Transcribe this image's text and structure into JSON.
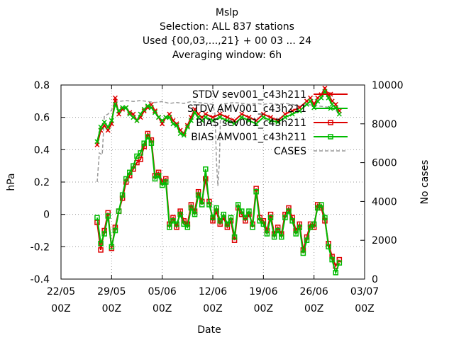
{
  "chart_data": {
    "type": "line",
    "title_lines": [
      "Mslp",
      "Selection: ALL    837 stations",
      "Used {00,03,...,21} + 00 03 ... 24",
      "Averaging window:  6h"
    ],
    "xlabel": "Date",
    "ylabel": "hPa",
    "y2label": "No cases",
    "ylim": [
      -0.4,
      0.8
    ],
    "y2lim": [
      0,
      10000
    ],
    "yticks": [
      "-0.4",
      "-0.2",
      "0",
      "0.2",
      "0.4",
      "0.6",
      "0.8"
    ],
    "y2ticks": [
      "0",
      "2000",
      "4000",
      "6000",
      "8000",
      "10000"
    ],
    "xlim": [
      0,
      42
    ],
    "xticks": [
      {
        "line1": "22/05",
        "line2": "00Z"
      },
      {
        "line1": "29/05",
        "line2": "00Z"
      },
      {
        "line1": "05/06",
        "line2": "00Z"
      },
      {
        "line1": "12/06",
        "line2": "00Z"
      },
      {
        "line1": "19/06",
        "line2": "00Z"
      },
      {
        "line1": "26/06",
        "line2": "00Z"
      },
      {
        "line1": "03/07",
        "line2": "00Z"
      }
    ],
    "grid": true,
    "legend_position": "top-right",
    "series": [
      {
        "name": "STDV sev001_c43h211",
        "marker": "x",
        "color": "#dd0000",
        "axis": "y",
        "values": [
          [
            5.0,
            0.43
          ],
          [
            5.5,
            0.52
          ],
          [
            6.0,
            0.55
          ],
          [
            6.5,
            0.52
          ],
          [
            7.0,
            0.56
          ],
          [
            7.5,
            0.72
          ],
          [
            8.0,
            0.62
          ],
          [
            8.5,
            0.65
          ],
          [
            9.0,
            0.66
          ],
          [
            9.5,
            0.63
          ],
          [
            10.0,
            0.62
          ],
          [
            10.5,
            0.58
          ],
          [
            11.0,
            0.6
          ],
          [
            11.5,
            0.64
          ],
          [
            12.0,
            0.66
          ],
          [
            12.5,
            0.68
          ],
          [
            13.0,
            0.64
          ],
          [
            13.5,
            0.6
          ],
          [
            14.0,
            0.56
          ],
          [
            14.5,
            0.6
          ],
          [
            15.0,
            0.62
          ],
          [
            15.5,
            0.58
          ],
          [
            16.0,
            0.56
          ],
          [
            16.5,
            0.52
          ],
          [
            17.0,
            0.5
          ],
          [
            17.5,
            0.55
          ],
          [
            18.0,
            0.6
          ],
          [
            18.5,
            0.65
          ],
          [
            19.0,
            0.62
          ],
          [
            19.5,
            0.6
          ],
          [
            20.0,
            0.62
          ],
          [
            21.0,
            0.6
          ],
          [
            22.0,
            0.62
          ],
          [
            23.0,
            0.6
          ],
          [
            24.0,
            0.58
          ],
          [
            25.0,
            0.62
          ],
          [
            26.0,
            0.6
          ],
          [
            27.0,
            0.58
          ],
          [
            28.0,
            0.62
          ],
          [
            29.0,
            0.6
          ],
          [
            30.0,
            0.58
          ],
          [
            31.0,
            0.62
          ],
          [
            32.0,
            0.64
          ],
          [
            33.0,
            0.66
          ],
          [
            34.0,
            0.7
          ],
          [
            34.5,
            0.72
          ],
          [
            35.0,
            0.68
          ],
          [
            35.5,
            0.72
          ],
          [
            36.0,
            0.74
          ],
          [
            36.5,
            0.78
          ],
          [
            37.0,
            0.74
          ],
          [
            37.5,
            0.7
          ],
          [
            38.0,
            0.68
          ],
          [
            38.5,
            0.64
          ]
        ]
      },
      {
        "name": "STDV AMV001_c43h211",
        "marker": "x",
        "color": "#00bb00",
        "axis": "y",
        "values": [
          [
            5.0,
            0.45
          ],
          [
            5.5,
            0.54
          ],
          [
            6.0,
            0.57
          ],
          [
            6.5,
            0.54
          ],
          [
            7.0,
            0.58
          ],
          [
            7.5,
            0.68
          ],
          [
            8.0,
            0.64
          ],
          [
            8.5,
            0.66
          ],
          [
            9.0,
            0.66
          ],
          [
            9.5,
            0.62
          ],
          [
            10.0,
            0.6
          ],
          [
            10.5,
            0.58
          ],
          [
            11.0,
            0.62
          ],
          [
            11.5,
            0.65
          ],
          [
            12.0,
            0.67
          ],
          [
            12.5,
            0.66
          ],
          [
            13.0,
            0.63
          ],
          [
            13.5,
            0.6
          ],
          [
            14.0,
            0.58
          ],
          [
            14.5,
            0.6
          ],
          [
            15.0,
            0.6
          ],
          [
            15.5,
            0.56
          ],
          [
            16.0,
            0.55
          ],
          [
            16.5,
            0.5
          ],
          [
            17.0,
            0.49
          ],
          [
            17.5,
            0.54
          ],
          [
            18.0,
            0.58
          ],
          [
            18.5,
            0.63
          ],
          [
            19.0,
            0.6
          ],
          [
            19.5,
            0.58
          ],
          [
            20.0,
            0.6
          ],
          [
            21.0,
            0.58
          ],
          [
            22.0,
            0.6
          ],
          [
            23.0,
            0.58
          ],
          [
            24.0,
            0.56
          ],
          [
            25.0,
            0.6
          ],
          [
            26.0,
            0.58
          ],
          [
            27.0,
            0.56
          ],
          [
            28.0,
            0.6
          ],
          [
            29.0,
            0.58
          ],
          [
            30.0,
            0.57
          ],
          [
            31.0,
            0.6
          ],
          [
            32.0,
            0.62
          ],
          [
            33.0,
            0.64
          ],
          [
            34.0,
            0.68
          ],
          [
            34.5,
            0.7
          ],
          [
            35.0,
            0.66
          ],
          [
            35.5,
            0.7
          ],
          [
            36.0,
            0.72
          ],
          [
            36.5,
            0.76
          ],
          [
            37.0,
            0.72
          ],
          [
            37.5,
            0.68
          ],
          [
            38.0,
            0.66
          ],
          [
            38.5,
            0.62
          ]
        ]
      },
      {
        "name": "BIAS sev001_c43h211",
        "marker": "square",
        "color": "#dd0000",
        "axis": "y",
        "values": [
          [
            5.0,
            -0.05
          ],
          [
            5.5,
            -0.22
          ],
          [
            6.0,
            -0.1
          ],
          [
            6.5,
            0.01
          ],
          [
            7.0,
            -0.21
          ],
          [
            7.5,
            -0.08
          ],
          [
            8.0,
            0.02
          ],
          [
            8.5,
            0.1
          ],
          [
            9.0,
            0.2
          ],
          [
            9.5,
            0.24
          ],
          [
            10.0,
            0.28
          ],
          [
            10.5,
            0.32
          ],
          [
            11.0,
            0.34
          ],
          [
            11.5,
            0.42
          ],
          [
            12.0,
            0.5
          ],
          [
            12.5,
            0.46
          ],
          [
            13.0,
            0.24
          ],
          [
            13.5,
            0.26
          ],
          [
            14.0,
            0.2
          ],
          [
            14.5,
            0.22
          ],
          [
            15.0,
            -0.06
          ],
          [
            15.5,
            -0.02
          ],
          [
            16.0,
            -0.08
          ],
          [
            16.5,
            0.02
          ],
          [
            17.0,
            -0.04
          ],
          [
            17.5,
            -0.06
          ],
          [
            18.0,
            0.06
          ],
          [
            18.5,
            0.02
          ],
          [
            19.0,
            0.14
          ],
          [
            19.5,
            0.08
          ],
          [
            20.0,
            0.22
          ],
          [
            20.5,
            0.08
          ],
          [
            21.0,
            -0.04
          ],
          [
            21.5,
            0.02
          ],
          [
            22.0,
            -0.06
          ],
          [
            22.5,
            -0.02
          ],
          [
            23.0,
            -0.08
          ],
          [
            23.5,
            -0.04
          ],
          [
            24.0,
            -0.16
          ],
          [
            24.5,
            0.04
          ],
          [
            25.0,
            0.0
          ],
          [
            25.5,
            -0.04
          ],
          [
            26.0,
            0.0
          ],
          [
            26.5,
            -0.06
          ],
          [
            27.0,
            0.16
          ],
          [
            27.5,
            -0.02
          ],
          [
            28.0,
            -0.04
          ],
          [
            28.5,
            -0.1
          ],
          [
            29.0,
            0.0
          ],
          [
            29.5,
            -0.12
          ],
          [
            30.0,
            -0.08
          ],
          [
            30.5,
            -0.12
          ],
          [
            31.0,
            0.0
          ],
          [
            31.5,
            0.04
          ],
          [
            32.0,
            -0.02
          ],
          [
            32.5,
            -0.1
          ],
          [
            33.0,
            -0.06
          ],
          [
            33.5,
            -0.22
          ],
          [
            34.0,
            -0.14
          ],
          [
            34.5,
            -0.06
          ],
          [
            35.0,
            -0.08
          ],
          [
            35.5,
            0.06
          ],
          [
            36.0,
            0.04
          ],
          [
            36.5,
            -0.04
          ],
          [
            37.0,
            -0.18
          ],
          [
            37.5,
            -0.26
          ],
          [
            38.0,
            -0.32
          ],
          [
            38.5,
            -0.28
          ]
        ]
      },
      {
        "name": "BIAS AMV001_c43h211",
        "marker": "square",
        "color": "#00bb00",
        "axis": "y",
        "values": [
          [
            5.0,
            -0.02
          ],
          [
            5.5,
            -0.18
          ],
          [
            6.0,
            -0.12
          ],
          [
            6.5,
            -0.01
          ],
          [
            7.0,
            -0.2
          ],
          [
            7.5,
            -0.1
          ],
          [
            8.0,
            0.02
          ],
          [
            8.5,
            0.12
          ],
          [
            9.0,
            0.22
          ],
          [
            9.5,
            0.26
          ],
          [
            10.0,
            0.3
          ],
          [
            10.5,
            0.36
          ],
          [
            11.0,
            0.38
          ],
          [
            11.5,
            0.44
          ],
          [
            12.0,
            0.48
          ],
          [
            12.5,
            0.44
          ],
          [
            13.0,
            0.22
          ],
          [
            13.5,
            0.24
          ],
          [
            14.0,
            0.18
          ],
          [
            14.5,
            0.2
          ],
          [
            15.0,
            -0.08
          ],
          [
            15.5,
            -0.04
          ],
          [
            16.0,
            -0.06
          ],
          [
            16.5,
            0.0
          ],
          [
            17.0,
            -0.06
          ],
          [
            17.5,
            -0.08
          ],
          [
            18.0,
            0.04
          ],
          [
            18.5,
            0.0
          ],
          [
            19.0,
            0.12
          ],
          [
            19.5,
            0.06
          ],
          [
            20.0,
            0.28
          ],
          [
            20.5,
            0.06
          ],
          [
            21.0,
            -0.02
          ],
          [
            21.5,
            0.04
          ],
          [
            22.0,
            -0.04
          ],
          [
            22.5,
            0.0
          ],
          [
            23.0,
            -0.06
          ],
          [
            23.5,
            -0.02
          ],
          [
            24.0,
            -0.14
          ],
          [
            24.5,
            0.06
          ],
          [
            25.0,
            0.02
          ],
          [
            25.5,
            -0.02
          ],
          [
            26.0,
            0.02
          ],
          [
            26.5,
            -0.08
          ],
          [
            27.0,
            0.14
          ],
          [
            27.5,
            -0.04
          ],
          [
            28.0,
            -0.06
          ],
          [
            28.5,
            -0.12
          ],
          [
            29.0,
            -0.02
          ],
          [
            29.5,
            -0.14
          ],
          [
            30.0,
            -0.1
          ],
          [
            30.5,
            -0.14
          ],
          [
            31.0,
            -0.02
          ],
          [
            31.5,
            0.02
          ],
          [
            32.0,
            -0.04
          ],
          [
            32.5,
            -0.12
          ],
          [
            33.0,
            -0.08
          ],
          [
            33.5,
            -0.24
          ],
          [
            34.0,
            -0.16
          ],
          [
            34.5,
            -0.08
          ],
          [
            35.0,
            -0.06
          ],
          [
            35.5,
            0.04
          ],
          [
            36.0,
            0.06
          ],
          [
            36.5,
            -0.02
          ],
          [
            37.0,
            -0.2
          ],
          [
            37.5,
            -0.28
          ],
          [
            38.0,
            -0.36
          ],
          [
            38.5,
            -0.3
          ]
        ]
      },
      {
        "name": "CASES",
        "marker": "none",
        "color": "#999999",
        "dashed": true,
        "axis": "y2",
        "values": [
          [
            5.0,
            5000
          ],
          [
            5.3,
            6500
          ],
          [
            5.7,
            6400
          ],
          [
            6.0,
            8400
          ],
          [
            6.5,
            8500
          ],
          [
            7.0,
            8700
          ],
          [
            7.5,
            9200
          ],
          [
            8.0,
            9150
          ],
          [
            9.0,
            9200
          ],
          [
            10.0,
            9150
          ],
          [
            11.0,
            9200
          ],
          [
            12.0,
            9150
          ],
          [
            13.0,
            9100
          ],
          [
            14.0,
            9150
          ],
          [
            15.0,
            9050
          ],
          [
            16.0,
            9100
          ],
          [
            17.0,
            9050
          ],
          [
            18.0,
            9150
          ],
          [
            19.0,
            9100
          ],
          [
            20.0,
            9050
          ],
          [
            21.0,
            9000
          ],
          [
            21.3,
            8500
          ],
          [
            21.5,
            6100
          ],
          [
            21.7,
            4800
          ],
          [
            21.9,
            6000
          ],
          [
            22.1,
            9000
          ],
          [
            23.0,
            9050
          ],
          [
            24.0,
            9100
          ],
          [
            25.0,
            9050
          ],
          [
            26.0,
            9000
          ],
          [
            27.0,
            9050
          ],
          [
            28.0,
            9000
          ],
          [
            29.0,
            9050
          ],
          [
            30.0,
            9000
          ],
          [
            31.0,
            9050
          ],
          [
            32.0,
            9000
          ],
          [
            33.0,
            8900
          ],
          [
            34.0,
            9000
          ],
          [
            35.0,
            8950
          ],
          [
            36.0,
            8900
          ],
          [
            37.0,
            8850
          ],
          [
            38.0,
            8700
          ],
          [
            38.5,
            8500
          ]
        ]
      }
    ]
  }
}
